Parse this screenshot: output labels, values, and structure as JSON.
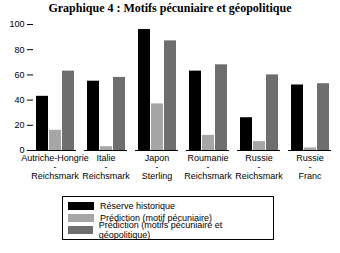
{
  "chart_data": {
    "type": "bar",
    "title": "Graphique 4 : Motifs pécuniaire et géopolitique",
    "categories": [
      "Autriche-Hongrie\n-\nReichsmark",
      "Italie\n-\nReichsmark",
      "Japon\n-\nSterling",
      "Roumanie\n-\nReichsmark",
      "Russie\n-\nReichsmark",
      "Russie\n-\nFranc"
    ],
    "series": [
      {
        "name": "Réserve historique",
        "color": "#000000",
        "values": [
          43,
          55,
          96,
          63,
          26,
          52
        ]
      },
      {
        "name": "Prédiction (motif pécuniaire)",
        "color": "#a6a6a6",
        "values": [
          16,
          3,
          37,
          12,
          7,
          2
        ]
      },
      {
        "name": "Prédiction (motifs pécuniaire et géopolitique)",
        "color": "#6e6e6e",
        "values": [
          63,
          58,
          87,
          68,
          60,
          53
        ]
      }
    ],
    "ylim": [
      0,
      100
    ],
    "yticks": [
      0,
      20,
      40,
      60,
      80,
      100
    ],
    "grid": false,
    "legend": "bottom"
  }
}
